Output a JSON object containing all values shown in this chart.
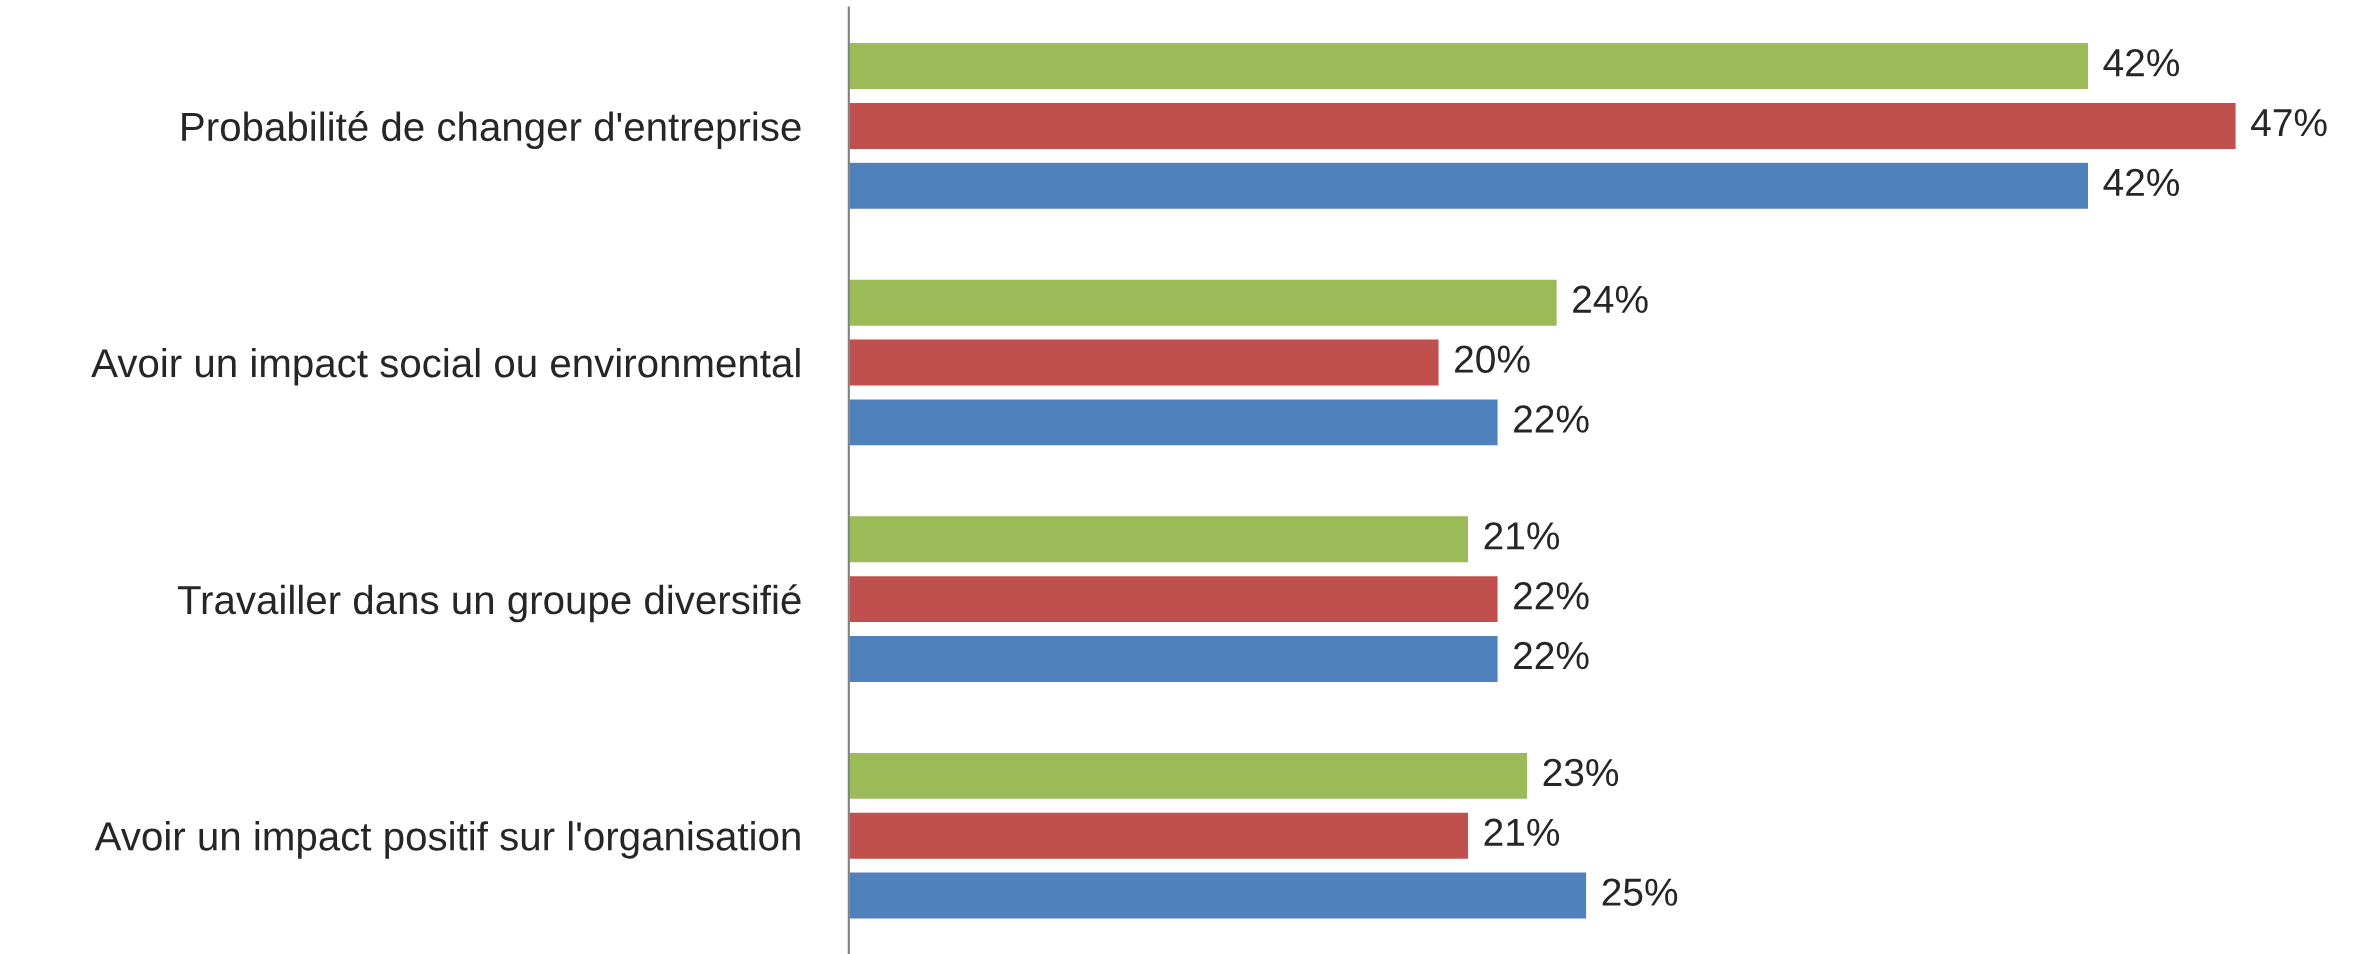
{
  "chart_data": {
    "type": "bar",
    "orientation": "horizontal",
    "tick_labels": "y",
    "categories": [
      "Probabilité de changer d'entreprise",
      "Avoir un impact social ou environmental",
      "Travailler dans un groupe diversifié",
      "Avoir un impact positif sur l'organisation"
    ],
    "series": [
      {
        "color": "#9bbb59",
        "values": [
          42,
          24,
          21,
          23
        ],
        "value_labels": [
          "42%",
          "24%",
          "21%",
          "23%"
        ]
      },
      {
        "color": "#c0504d",
        "values": [
          47,
          20,
          22,
          21
        ],
        "value_labels": [
          "47%",
          "20%",
          "22%",
          "21%"
        ]
      },
      {
        "color": "#4f81bd",
        "values": [
          42,
          22,
          22,
          25
        ],
        "value_labels": [
          "42%",
          "22%",
          "22%",
          "25%"
        ]
      }
    ]
  }
}
